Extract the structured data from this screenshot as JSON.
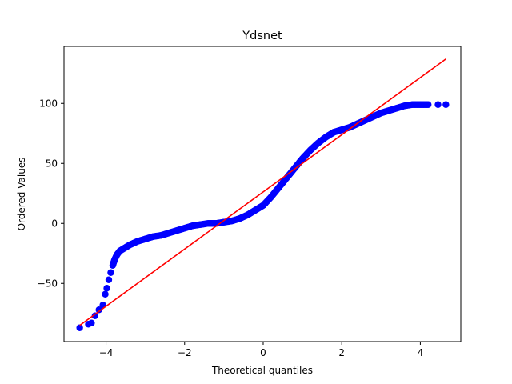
{
  "chart_data": {
    "type": "scatter",
    "title": "Ydsnet",
    "xlabel": "Theoretical quantiles",
    "ylabel": "Ordered Values",
    "xlim": [
      -5.07,
      5.03
    ],
    "ylim": [
      -98.5,
      147.5
    ],
    "xticks": [
      -4,
      -2,
      0,
      2,
      4
    ],
    "yticks": [
      -50,
      0,
      50,
      100
    ],
    "xtick_labels": [
      "−4",
      "−2",
      "0",
      "2",
      "4"
    ],
    "ytick_labels": [
      "−50",
      "0",
      "50",
      "100"
    ],
    "grid": false,
    "marker_color": "#0000ff",
    "line_color": "#ff0000",
    "series": [
      {
        "kind": "points",
        "x": [
          -4.67,
          -4.45,
          -4.37,
          -4.28,
          -4.18,
          -4.08,
          -4.02,
          -3.98,
          -3.93,
          -3.88,
          -3.83,
          -3.78,
          -3.72,
          -3.65,
          -3.55,
          -3.4,
          -3.2,
          -3.0,
          -2.8,
          -2.6,
          -2.4,
          -2.2,
          -2.0,
          -1.8,
          -1.6,
          -1.4,
          -1.2,
          -1.0,
          -0.8,
          -0.6,
          -0.4,
          -0.2,
          0.0,
          0.2,
          0.4,
          0.6,
          0.8,
          1.0,
          1.2,
          1.4,
          1.6,
          1.8,
          2.0,
          2.2,
          2.4,
          2.6,
          2.8,
          3.0,
          3.2,
          3.4,
          3.6,
          3.8,
          4.0,
          4.2,
          4.45,
          4.65
        ],
        "y": [
          -87,
          -84,
          -83,
          -77,
          -72,
          -68,
          -59,
          -54,
          -47,
          -41,
          -35,
          -30,
          -26,
          -23,
          -21,
          -18,
          -15,
          -13,
          -11,
          -10,
          -8,
          -6,
          -4,
          -2,
          -1,
          0,
          0,
          1,
          2,
          4,
          7,
          11,
          15,
          22,
          30,
          38,
          46,
          54,
          61,
          67,
          72,
          76,
          78,
          80,
          83,
          86,
          89,
          92,
          94,
          96,
          98,
          99,
          99,
          99,
          99,
          99
        ]
      },
      {
        "kind": "fit-line",
        "x": [
          -4.67,
          4.65
        ],
        "y": [
          -85,
          137
        ]
      }
    ]
  }
}
